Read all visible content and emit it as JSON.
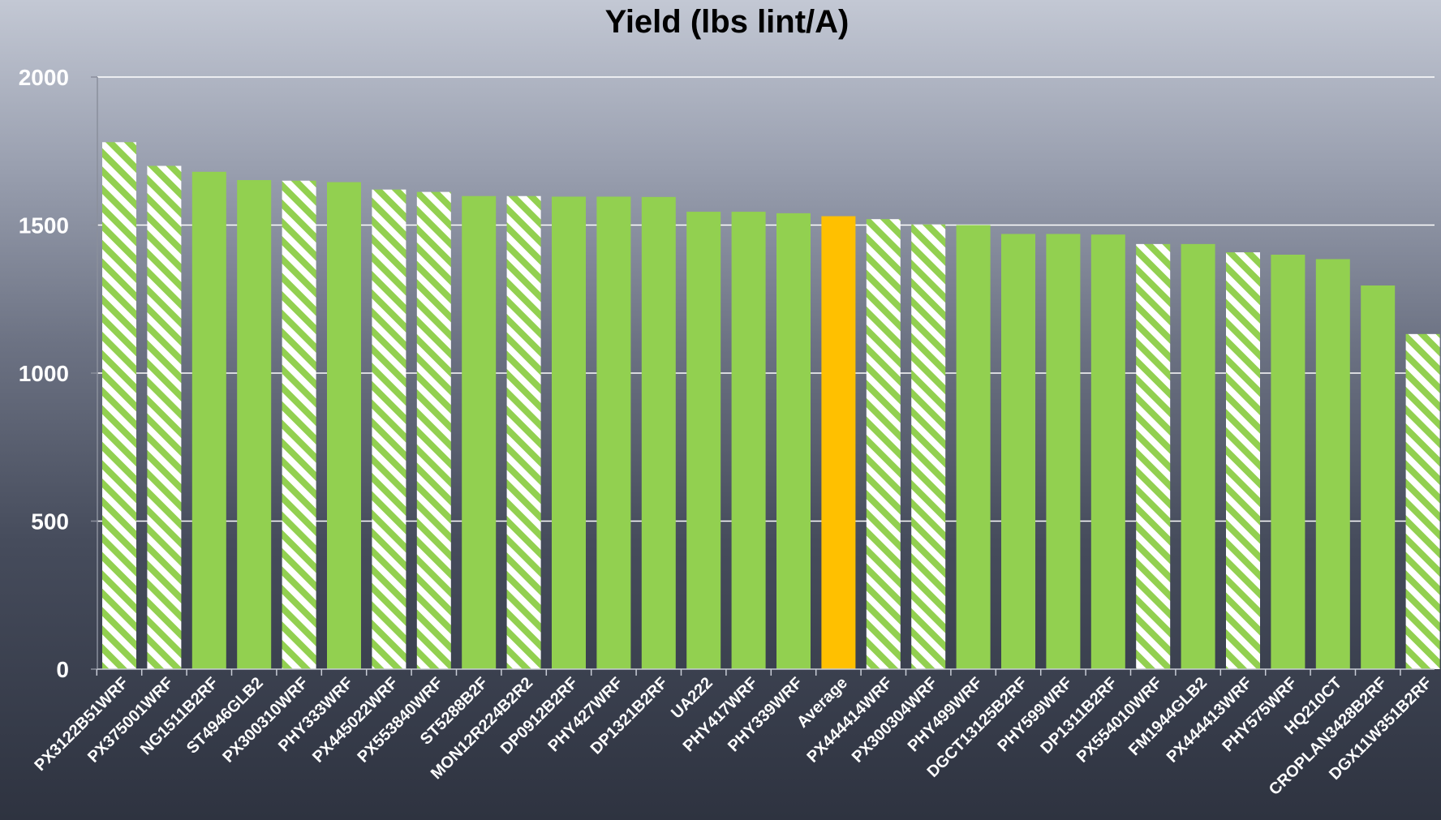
{
  "chart_data": {
    "type": "bar",
    "title": "Yield (lbs lint/A)",
    "xlabel": "",
    "ylabel": "",
    "ylim": [
      0,
      2000
    ],
    "yticks": [
      0,
      500,
      1000,
      1500,
      2000
    ],
    "grid": true,
    "categories": [
      "PX3122B51WRF",
      "PX375001WRF",
      "NG1511B2RF",
      "ST4946GLB2",
      "PX300310WRF",
      "PHY333WRF",
      "PX445022WRF",
      "PX553840WRF",
      "ST5288B2F",
      "MON12R224B2R2",
      "DP0912B2RF",
      "PHY427WRF",
      "DP1321B2RF",
      "UA222",
      "PHY417WRF",
      "PHY339WRF",
      "Average",
      "PX444414WRF",
      "PX300304WRF",
      "PHY499WRF",
      "DGCT13125B2RF",
      "PHY599WRF",
      "DP1311B2RF",
      "PX554010WRF",
      "FM1944GLB2",
      "PX444413WRF",
      "PHY575WRF",
      "HQ210CT",
      "CROPLAN3428B2RF",
      "DGX11W351B2RF"
    ],
    "values": [
      1780,
      1700,
      1680,
      1652,
      1650,
      1645,
      1620,
      1612,
      1598,
      1598,
      1596,
      1596,
      1595,
      1545,
      1545,
      1540,
      1530,
      1520,
      1502,
      1500,
      1470,
      1470,
      1468,
      1436,
      1436,
      1408,
      1400,
      1385,
      1296,
      1132
    ],
    "styles": [
      "striped",
      "striped",
      "solid",
      "solid",
      "striped",
      "solid",
      "striped",
      "striped",
      "solid",
      "striped",
      "solid",
      "solid",
      "solid",
      "solid",
      "solid",
      "solid",
      "highlight",
      "striped",
      "striped",
      "solid",
      "solid",
      "solid",
      "solid",
      "striped",
      "solid",
      "striped",
      "solid",
      "solid",
      "solid",
      "striped"
    ],
    "colors": {
      "bar": "#92d050",
      "average": "#ffc000",
      "stripe_bg": "#ffffff",
      "grid": "#ffffff"
    }
  }
}
